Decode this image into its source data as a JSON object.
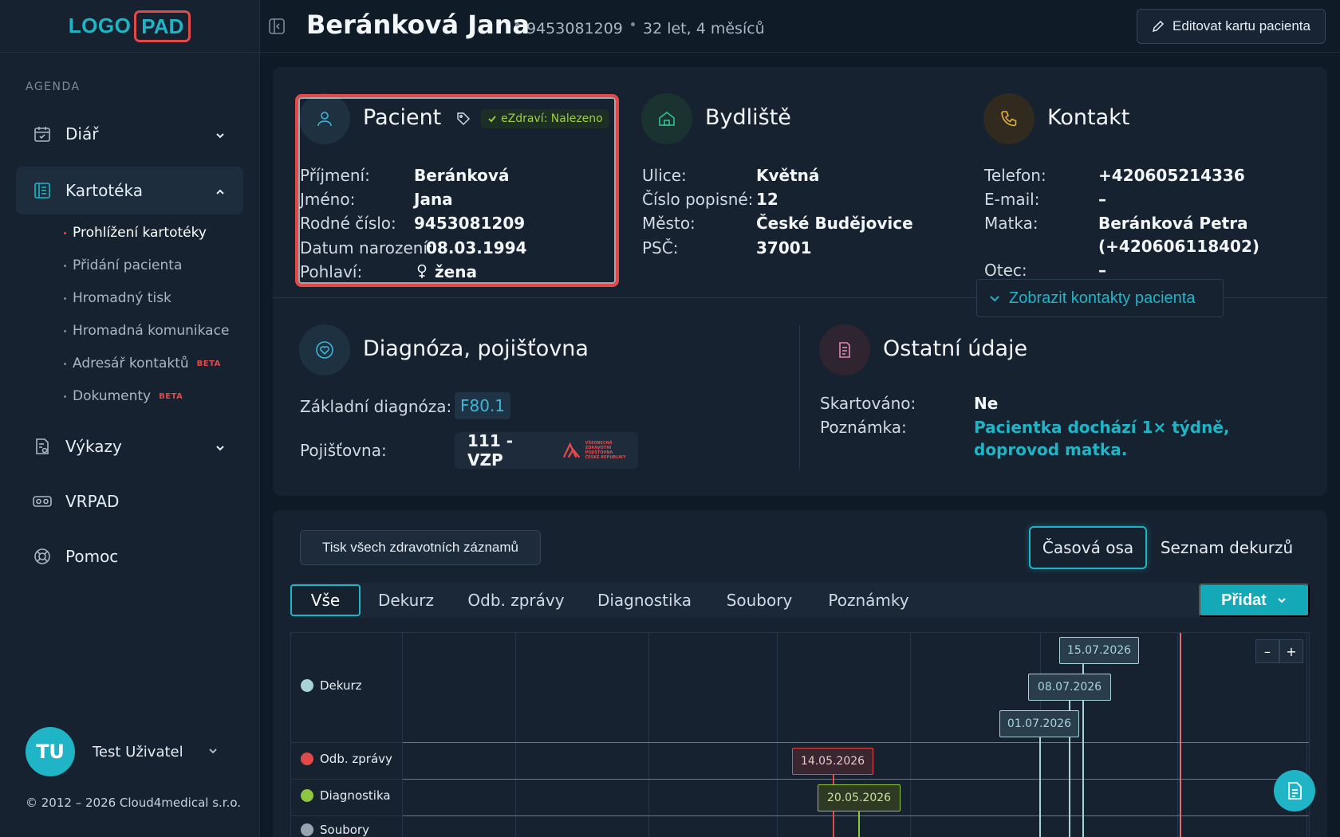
{
  "app": {
    "logo_part1": "LOGO",
    "logo_part2": "PAD"
  },
  "sidebar": {
    "section_label": "AGENDA",
    "items": [
      {
        "label": "Diář",
        "icon": "calendar-check-icon"
      },
      {
        "label": "Kartotéka",
        "icon": "address-book-icon"
      },
      {
        "label": "Výkazy",
        "icon": "report-icon"
      },
      {
        "label": "VRPAD",
        "icon": "vr-headset-icon"
      },
      {
        "label": "Pomoc",
        "icon": "lifebuoy-icon"
      }
    ],
    "sub_items": [
      {
        "label": "Prohlížení kartotéky"
      },
      {
        "label": "Přidání pacienta"
      },
      {
        "label": "Hromadný tisk"
      },
      {
        "label": "Hromadná komunikace"
      },
      {
        "label": "Adresář kontaktů",
        "badge": "BETA"
      },
      {
        "label": "Dokumenty",
        "badge": "BETA"
      }
    ],
    "user": {
      "initials": "TU",
      "name": "Test Uživatel"
    },
    "copyright": "© 2012 – 2026 Cloud4medical s.r.o."
  },
  "header": {
    "patient_name": "Beránková Jana",
    "birth_number": "9453081209",
    "age": "32 let, 4 měsíců",
    "edit_label": "Editovat kartu pacienta"
  },
  "patient": {
    "title": "Pacient",
    "ezdravi": "eZdraví: Nalezeno",
    "fields": [
      {
        "label": "Příjmení:",
        "value": "Beránková"
      },
      {
        "label": "Jméno:",
        "value": "Jana"
      },
      {
        "label": "Rodné číslo:",
        "value": "9453081209"
      },
      {
        "label": "Datum narození:",
        "value": "08.03.1994"
      },
      {
        "label": "Pohlaví:",
        "value": "žena"
      }
    ]
  },
  "residence": {
    "title": "Bydliště",
    "fields": [
      {
        "label": "Ulice:",
        "value": "Květná"
      },
      {
        "label": "Číslo popisné:",
        "value": "12"
      },
      {
        "label": "Město:",
        "value": "České Budějovice"
      },
      {
        "label": "PSČ:",
        "value": "37001"
      }
    ]
  },
  "contact": {
    "title": "Kontakt",
    "fields": [
      {
        "label": "Telefon:",
        "value": "+420605214336"
      },
      {
        "label": "E-mail:",
        "value": "–"
      },
      {
        "label": "Matka:",
        "value": "Beránková Petra",
        "value2": "(+420606118402)"
      },
      {
        "label": "Otec:",
        "value": "–"
      }
    ],
    "show_contacts_label": "Zobrazit kontakty pacienta"
  },
  "diagnosis": {
    "title": "Diagnóza, pojišťovna",
    "basic_label": "Základní diagnóza:",
    "basic_value": "F80.1",
    "insurer_label": "Pojišťovna:",
    "insurer_value": "111 - VZP",
    "insurer_logo_text1": "VŠEOBECNÁ",
    "insurer_logo_text2": "ZDRAVOTNÍ POJIŠŤOVNA",
    "insurer_logo_text3": "ČESKÉ REPUBLIKY"
  },
  "other": {
    "title": "Ostatní údaje",
    "shredded_label": "Skartováno:",
    "shredded_value": "Ne",
    "note_label": "Poznámka:",
    "note_value": "Pacientka dochází 1× týdně, doprovod matka."
  },
  "records": {
    "print_label": "Tisk všech zdravotních záznamů",
    "view_tabs": [
      "Časová osa",
      "Seznam dekurzů"
    ],
    "filter_tabs": [
      "Vše",
      "Dekurz",
      "Odb. zprávy",
      "Diagnostika",
      "Soubory",
      "Poznámky"
    ],
    "add_label": "Přidat",
    "zoom_minus": "–",
    "zoom_plus": "+",
    "timeline_rows": [
      "Dekurz",
      "Odb. zprávy",
      "Diagnostika",
      "Soubory"
    ],
    "timeline_colors": {
      "dekurz": "#a8d4d8",
      "odb": "#e24a4a",
      "diag": "#8dc63f",
      "soubory": "#9aa4ae"
    },
    "events": {
      "dekurz": [
        "15.07.2026",
        "08.07.2026",
        "01.07.2026"
      ],
      "odb": [
        "14.05.2026"
      ],
      "diag": [
        "20.05.2026"
      ]
    }
  }
}
